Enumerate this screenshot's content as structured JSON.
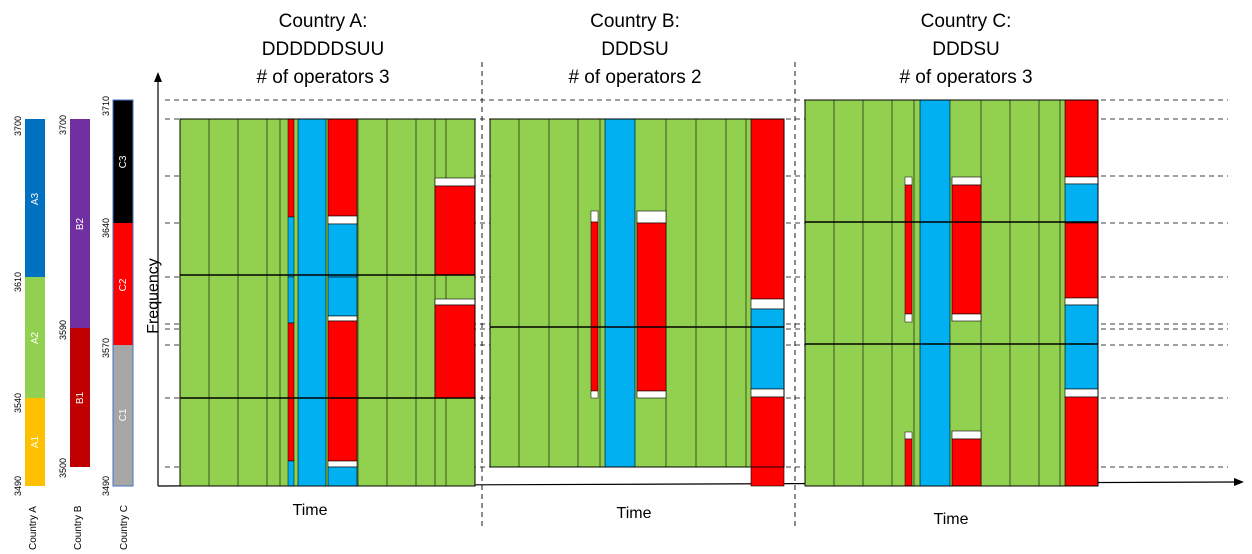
{
  "colors": {
    "green": "#92d050",
    "blue": "#00b0f0",
    "red": "#ff0000",
    "black": "#000000",
    "amber": "#ffc000",
    "a3_blue": "#0070c0",
    "b2_purple": "#7030a0",
    "b1_darkred": "#c00000",
    "c1_gray": "#a6a6a6"
  },
  "panels": [
    {
      "title_line1": "Country A:",
      "title_line2": "DDDDDDSUU",
      "title_line3": "# of operators 3",
      "xlabel": "Time"
    },
    {
      "title_line1": "Country B:",
      "title_line2": "DDDSU",
      "title_line3": "# of operators 2",
      "xlabel": "Time"
    },
    {
      "title_line1": "Country C:",
      "title_line2": "DDDSU",
      "title_line3": "# of operators 3",
      "xlabel": "Time"
    }
  ],
  "ylabel": "Frequency",
  "allocation": [
    {
      "country": "Country A",
      "ticks": [
        "3700",
        "3610",
        "3540",
        "3490"
      ],
      "blocks": [
        {
          "label": "A3",
          "from": 3610,
          "to": 3700,
          "color": "#0070c0",
          "text_color": "#ffffff"
        },
        {
          "label": "A2",
          "from": 3540,
          "to": 3610,
          "color": "#92d050",
          "text_color": "#ffffff"
        },
        {
          "label": "A1",
          "from": 3490,
          "to": 3540,
          "color": "#ffc000",
          "text_color": "#ffffff"
        }
      ]
    },
    {
      "country": "Country B",
      "ticks": [
        "3700",
        "3590",
        "3500"
      ],
      "blocks": [
        {
          "label": "B2",
          "from": 3590,
          "to": 3700,
          "color": "#7030a0",
          "text_color": "#ffffff"
        },
        {
          "label": "B1",
          "from": 3500,
          "to": 3590,
          "color": "#c00000",
          "text_color": "#ffffff"
        }
      ]
    },
    {
      "country": "Country C",
      "ticks": [
        "3710",
        "3640",
        "3570",
        "3490"
      ],
      "blocks": [
        {
          "label": "C3",
          "from": 3640,
          "to": 3710,
          "color": "#000000",
          "text_color": "#ffffff"
        },
        {
          "label": "C2",
          "from": 3570,
          "to": 3640,
          "color": "#ff0000",
          "text_color": "#ffffff"
        },
        {
          "label": "C1",
          "from": 3490,
          "to": 3570,
          "color": "#a6a6a6",
          "text_color": "#ffffff"
        }
      ]
    }
  ]
}
